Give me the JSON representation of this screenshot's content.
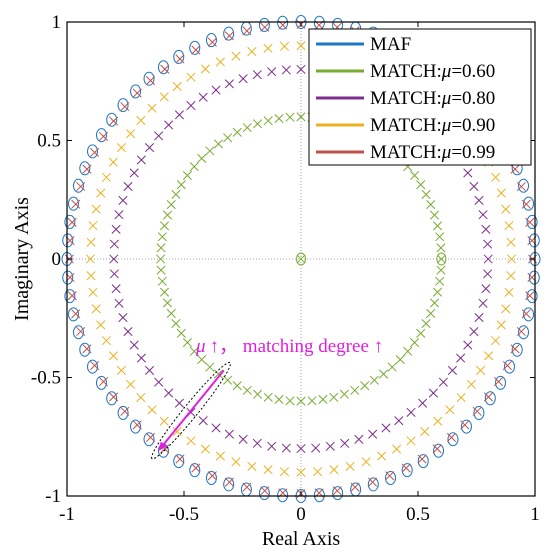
{
  "chart_data": {
    "type": "scatter",
    "subtype": "pole-zero-map",
    "xlabel": "Real Axis",
    "ylabel": "Imaginary Axis",
    "xlim": [
      -1,
      1
    ],
    "ylim": [
      -1,
      1
    ],
    "xticks": [
      -1,
      -0.5,
      0,
      0.5,
      1
    ],
    "yticks": [
      -1,
      -0.5,
      0,
      0.5,
      1
    ],
    "xtick_labels": [
      "-1",
      "-0.5",
      "0",
      "0.5",
      "1"
    ],
    "ytick_labels": [
      "-1",
      "-0.5",
      "0",
      "0.5",
      "1"
    ],
    "grid": false,
    "zero_lines": true,
    "legend_position": "top-right",
    "legend_labels": [
      "MAF",
      "MATCH:",
      "MATCH:",
      "MATCH:",
      "MATCH:"
    ],
    "mu_symbol": "μ",
    "series": [
      {
        "name": "MAF",
        "color": "#1f77c4",
        "markers": "circle",
        "radius": 1.0,
        "count": 80
      },
      {
        "name": "MATCH:μ=0.60",
        "mu_label": "=0.60",
        "color": "#77ac30",
        "markers": "cross",
        "radius": 0.6,
        "count": 80,
        "extra_zero_circle": [
          0,
          0
        ]
      },
      {
        "name": "MATCH:μ=0.80",
        "mu_label": "=0.80",
        "color": "#7e2f8e",
        "markers": "cross",
        "radius": 0.8,
        "count": 80
      },
      {
        "name": "MATCH:μ=0.90",
        "mu_label": "=0.90",
        "color": "#edb120",
        "markers": "cross",
        "radius": 0.9,
        "count": 80
      },
      {
        "name": "MATCH:μ=0.99",
        "mu_label": "=0.99",
        "color": "#c0504d",
        "markers": "cross",
        "radius": 0.99,
        "count": 80
      }
    ],
    "annotation": {
      "mu_symbol": "μ",
      "text": "↑， matching degree ↑",
      "color": "#e020e0",
      "arrow_from": [
        -0.33,
        -0.47
      ],
      "arrow_to": [
        -0.61,
        -0.81
      ]
    }
  }
}
